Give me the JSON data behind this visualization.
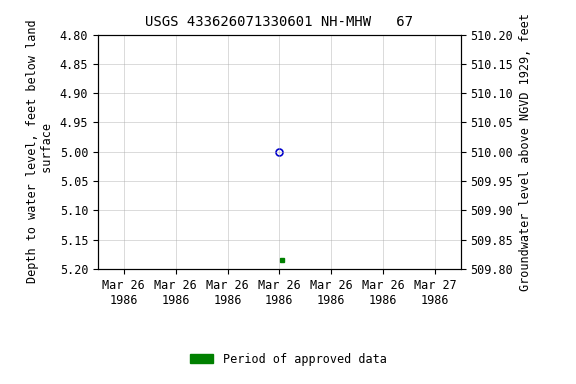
{
  "title": "USGS 433626071330601 NH-MHW   67",
  "left_ylabel": "Depth to water level, feet below land\n surface",
  "right_ylabel": "Groundwater level above NGVD 1929, feet",
  "ylim_left": [
    4.8,
    5.2
  ],
  "ylim_right": [
    509.8,
    510.2
  ],
  "yticks_left": [
    4.8,
    4.85,
    4.9,
    4.95,
    5.0,
    5.05,
    5.1,
    5.15,
    5.2
  ],
  "yticks_right": [
    510.2,
    510.15,
    510.1,
    510.05,
    510.0,
    509.95,
    509.9,
    509.85,
    509.8
  ],
  "xtick_labels": [
    "Mar 26\n1986",
    "Mar 26\n1986",
    "Mar 26\n1986",
    "Mar 26\n1986",
    "Mar 26\n1986",
    "Mar 26\n1986",
    "Mar 27\n1986"
  ],
  "xtick_positions": [
    0,
    1,
    2,
    3,
    4,
    5,
    6
  ],
  "xlim": [
    -0.5,
    6.5
  ],
  "blue_point_x": 3.0,
  "blue_point_y": 5.0,
  "green_point_x": 3.05,
  "green_point_y": 5.185,
  "legend_label": "Period of approved data",
  "legend_color": "#008000",
  "blue_color": "#0000cc",
  "bg_color": "#ffffff",
  "grid_color": "#aaaaaa",
  "title_fontsize": 10,
  "axis_fontsize": 8.5,
  "tick_fontsize": 8.5
}
